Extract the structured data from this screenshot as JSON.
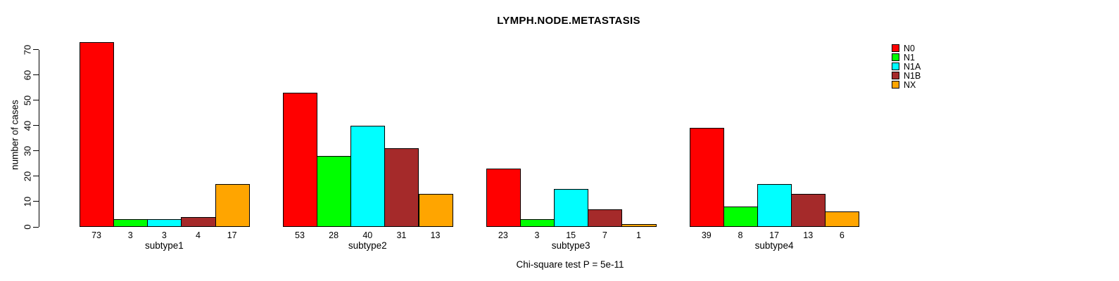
{
  "title": "LYMPH.NODE.METASTASIS",
  "y_axis": {
    "label": "number of cases",
    "ticks": [
      0,
      10,
      20,
      30,
      40,
      50,
      60,
      70
    ]
  },
  "caption": "Chi-square test P = 5e-11",
  "chart_data": {
    "type": "bar",
    "title": "LYMPH.NODE.METASTASIS",
    "xlabel": "",
    "ylabel": "number of cases",
    "ylim": [
      0,
      73
    ],
    "yticks": [
      0,
      10,
      20,
      30,
      40,
      50,
      60,
      70
    ],
    "grid": false,
    "legend_position": "top-right",
    "bar_value_labels": true,
    "categories": [
      "subtype1",
      "subtype2",
      "subtype3",
      "subtype4"
    ],
    "series": [
      {
        "name": "N0",
        "color": "#FF0000",
        "values": [
          73,
          53,
          23,
          39
        ]
      },
      {
        "name": "N1",
        "color": "#00FF00",
        "values": [
          3,
          28,
          3,
          8
        ]
      },
      {
        "name": "N1A",
        "color": "#00FFFF",
        "values": [
          3,
          40,
          15,
          17
        ]
      },
      {
        "name": "N1B",
        "color": "#A52A2A",
        "values": [
          4,
          31,
          7,
          13
        ]
      },
      {
        "name": "NX",
        "color": "#FFA500",
        "values": [
          17,
          13,
          1,
          6
        ]
      }
    ],
    "annotation": "Chi-square test P = 5e-11"
  }
}
